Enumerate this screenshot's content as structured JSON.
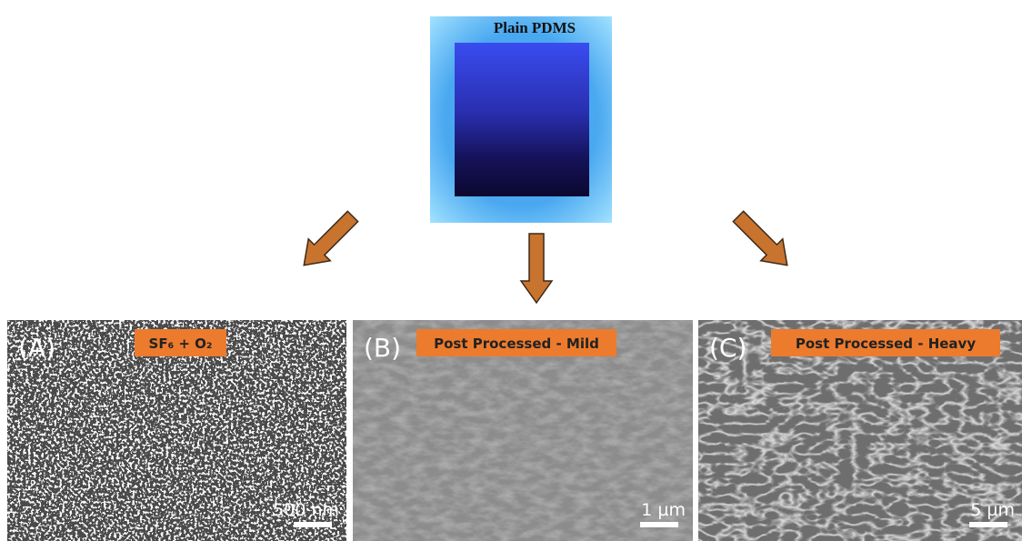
{
  "sample": {
    "title": "Plain PDMS"
  },
  "panels": [
    {
      "label": "(A)",
      "treatment": "SF₆ + O₂",
      "scale_bar": "500 nm"
    },
    {
      "label": "(B)",
      "treatment": "Post Processed - Mild",
      "scale_bar": "1 µm"
    },
    {
      "label": "(C)",
      "treatment": "Post Processed - Heavy",
      "scale_bar": "5 µm"
    }
  ]
}
